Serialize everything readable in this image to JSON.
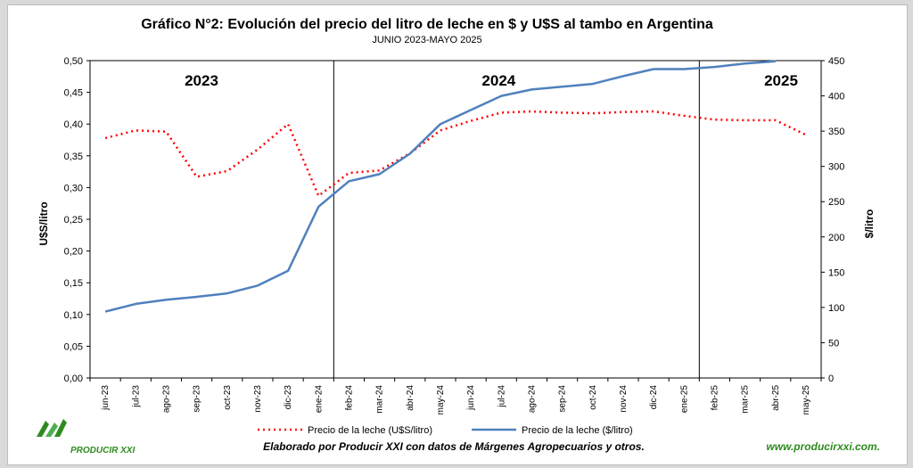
{
  "chart_data": {
    "type": "line",
    "title": "Gráfico N°2: Evolución del precio del litro de leche en $ y U$S al tambo en Argentina",
    "subtitle": "JUNIO  2023-MAYO  2025",
    "categories": [
      "jun-23",
      "jul-23",
      "ago-23",
      "sep-23",
      "oct-23",
      "nov-23",
      "dic-23",
      "ene-24",
      "feb-24",
      "mar-24",
      "abr-24",
      "may-24",
      "jun-24",
      "jul-24",
      "ago-24",
      "sep-24",
      "oct-24",
      "nov-24",
      "dic-24",
      "ene-25",
      "feb-25",
      "mar-25",
      "abr-25",
      "may-25"
    ],
    "series": [
      {
        "name": "Precio de la leche (U$S/litro)",
        "axis": "left",
        "color": "#ff0000",
        "style": "dotted",
        "values": [
          0.378,
          0.39,
          0.388,
          0.317,
          0.326,
          0.36,
          0.4,
          0.287,
          0.323,
          0.327,
          0.354,
          0.39,
          0.405,
          0.418,
          0.42,
          0.418,
          0.417,
          0.419,
          0.42,
          0.413,
          0.407,
          0.406,
          0.406,
          0.383
        ]
      },
      {
        "name": "Precio de la leche ($/litro)",
        "axis": "right",
        "color": "#4f81bd",
        "style": "solid",
        "values": [
          94,
          105,
          111,
          115,
          120,
          131,
          152,
          243,
          279,
          289,
          318,
          360,
          380,
          400,
          409,
          413,
          417,
          428,
          438,
          438,
          441,
          446,
          449,
          null
        ]
      }
    ],
    "ylabel": "U$S/litro",
    "ylim": [
      0,
      0.5
    ],
    "yticks": [
      "0,00",
      "0,05",
      "0,10",
      "0,15",
      "0,20",
      "0,25",
      "0,30",
      "0,35",
      "0,40",
      "0,45",
      "0,50"
    ],
    "y2label": "$/litro",
    "y2lim": [
      0,
      450
    ],
    "y2ticks": [
      "0",
      "50",
      "100",
      "150",
      "200",
      "250",
      "300",
      "350",
      "400",
      "450"
    ],
    "year_labels": [
      "2023",
      "2024",
      "2025"
    ],
    "separators_after_categories": [
      "ene-24",
      "ene-25"
    ],
    "grid": false,
    "legend_position": "bottom"
  },
  "footer": {
    "source": "Elaborado por Producir XXI con datos de Márgenes Agropecuarios y otros.",
    "website": "www.producirxxi.com.",
    "logo_text": "PRODUCIR XXI"
  }
}
